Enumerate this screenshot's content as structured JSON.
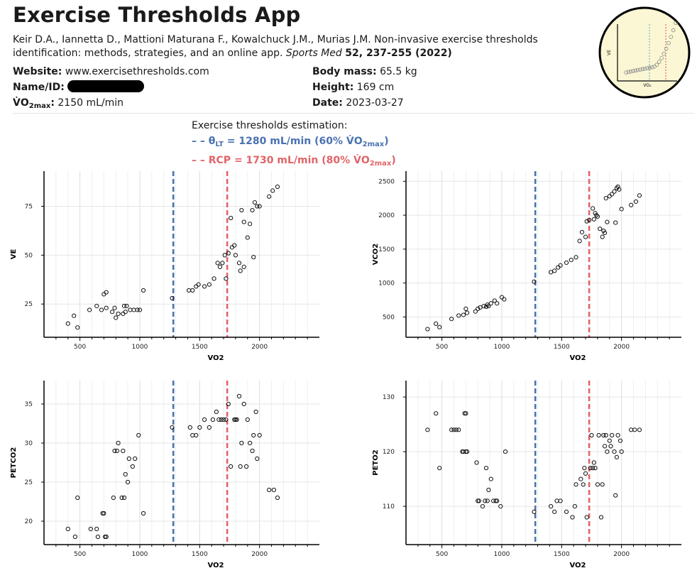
{
  "header": {
    "title": "Exercise Thresholds App",
    "citation_authors": "Keir D.A., Iannetta D., Mattioni Maturana F., Kowalchuck J.M., Murias J.M. Non-invasive exercise thresholds identification: methods, strategies, and an online app.",
    "citation_journal": "Sports Med",
    "citation_volume": "52, 237-255 (2022)"
  },
  "info": {
    "website_label": "Website:",
    "website_value": "www.exercisethresholds.com",
    "name_label": "Name/ID:",
    "vo2max_label_main": "V̇O",
    "vo2max_label_sub": "2max",
    "vo2max_label_colon": ":",
    "vo2max_value": "2150 mL/min",
    "bodymass_label": "Body mass:",
    "bodymass_value": "65.5 kg",
    "height_label": "Height:",
    "height_value": "169 cm",
    "date_label": "Date:",
    "date_value": "2023-03-27"
  },
  "legend": {
    "title": "Exercise thresholds estimation:",
    "lt_prefix": "– – θ",
    "lt_sub": "LT",
    "lt_text": " = 1280 mL/min (60% V̇O",
    "lt_sub2": "2max",
    "lt_close": ")",
    "rcp_text": "– – RCP = 1730 mL/min (80% V̇O",
    "rcp_sub": "2max",
    "rcp_close": ")"
  },
  "colors": {
    "lt": "#4a72b0",
    "rcp": "#e06468",
    "grid": "#e6e6e6",
    "axis": "#000000",
    "logo_bg": "#fbf7d4"
  },
  "logo": {
    "xlabel": "VO₂",
    "ylabel": "VE"
  },
  "chart_data": [
    {
      "type": "scatter",
      "id": "ve",
      "xlabel": "VO2",
      "ylabel": "VE",
      "xlim": [
        200,
        2500
      ],
      "ylim": [
        8,
        93
      ],
      "xticks": [
        500,
        1000,
        1500,
        2000
      ],
      "yticks": [
        25,
        50,
        75
      ],
      "thresholds": [
        1280,
        1730
      ],
      "x": [
        400,
        450,
        480,
        580,
        640,
        680,
        700,
        720,
        720,
        770,
        790,
        800,
        820,
        860,
        870,
        880,
        890,
        920,
        950,
        980,
        1000,
        1030,
        1270,
        1410,
        1440,
        1470,
        1490,
        1540,
        1580,
        1620,
        1650,
        1670,
        1690,
        1710,
        1720,
        1740,
        1760,
        1770,
        1790,
        1800,
        1830,
        1840,
        1850,
        1870,
        1870,
        1900,
        1920,
        1940,
        1950,
        1960,
        1980,
        2000,
        2080,
        2110,
        2150
      ],
      "y": [
        15,
        19,
        13,
        22,
        24,
        22,
        30,
        31,
        23,
        21,
        23,
        18,
        20,
        20,
        24,
        21,
        24,
        22,
        22,
        22,
        22,
        32,
        28,
        32,
        32,
        34,
        35,
        34,
        35,
        38,
        46,
        44,
        46,
        50,
        38,
        51,
        69,
        54,
        55,
        50,
        46,
        42,
        73,
        44,
        67,
        59,
        66,
        73,
        49,
        77,
        75,
        75,
        80,
        83,
        85
      ]
    },
    {
      "type": "scatter",
      "id": "vco2",
      "xlabel": "VO2",
      "ylabel": "VCO2",
      "xlim": [
        200,
        2500
      ],
      "ylim": [
        200,
        2650
      ],
      "xticks": [
        500,
        1000,
        1500,
        2000
      ],
      "yticks": [
        500,
        1000,
        1500,
        2000,
        2500
      ],
      "thresholds": [
        1280,
        1730
      ],
      "x": [
        380,
        450,
        480,
        580,
        640,
        680,
        700,
        710,
        780,
        800,
        820,
        850,
        870,
        880,
        890,
        910,
        940,
        960,
        1000,
        1020,
        1270,
        1410,
        1440,
        1470,
        1490,
        1540,
        1580,
        1620,
        1650,
        1670,
        1700,
        1710,
        1730,
        1760,
        1770,
        1780,
        1790,
        1800,
        1820,
        1840,
        1850,
        1860,
        1870,
        1880,
        1900,
        1920,
        1940,
        1950,
        1960,
        1970,
        1980,
        2000,
        2080,
        2120,
        2150
      ],
      "y": [
        320,
        400,
        350,
        470,
        520,
        530,
        620,
        560,
        580,
        620,
        640,
        660,
        650,
        680,
        660,
        700,
        740,
        700,
        790,
        760,
        1020,
        1160,
        1180,
        1230,
        1260,
        1300,
        1340,
        1380,
        1620,
        1750,
        1680,
        1910,
        1930,
        2100,
        1940,
        2030,
        2000,
        1980,
        1800,
        1680,
        1770,
        1740,
        2250,
        1900,
        2280,
        2310,
        2350,
        1890,
        2400,
        2420,
        2380,
        2090,
        2150,
        2200,
        2290
      ]
    },
    {
      "type": "scatter",
      "id": "petco2",
      "xlabel": "VO2",
      "ylabel": "PETCO2",
      "xlim": [
        200,
        2500
      ],
      "ylim": [
        17,
        38
      ],
      "xticks": [
        500,
        1000,
        1500,
        2000
      ],
      "yticks": [
        20,
        25,
        30,
        35
      ],
      "thresholds": [
        1280,
        1730
      ],
      "x": [
        400,
        460,
        480,
        590,
        640,
        650,
        690,
        700,
        710,
        720,
        780,
        790,
        810,
        820,
        850,
        860,
        870,
        880,
        900,
        910,
        940,
        960,
        990,
        1030,
        1270,
        1420,
        1440,
        1470,
        1500,
        1540,
        1580,
        1610,
        1640,
        1660,
        1680,
        1700,
        1720,
        1740,
        1760,
        1790,
        1800,
        1810,
        1830,
        1840,
        1850,
        1870,
        1890,
        1900,
        1920,
        1940,
        1950,
        1970,
        1980,
        2000,
        2080,
        2120,
        2150
      ],
      "y": [
        19,
        18,
        23,
        19,
        19,
        18,
        21,
        21,
        18,
        18,
        23,
        29,
        29,
        30,
        23,
        29,
        23,
        26,
        25,
        28,
        27,
        28,
        31,
        21,
        32,
        32,
        31,
        31,
        32,
        33,
        32,
        33,
        34,
        33,
        33,
        33,
        33,
        35,
        27,
        33,
        33,
        33,
        36,
        27,
        30,
        35,
        27,
        33,
        30,
        29,
        31,
        34,
        28,
        31,
        24,
        24,
        23
      ]
    },
    {
      "type": "scatter",
      "id": "peto2",
      "xlabel": "VO2",
      "ylabel": "PETO2",
      "xlim": [
        200,
        2500
      ],
      "ylim": [
        103,
        133
      ],
      "xticks": [
        500,
        1000,
        1500,
        2000
      ],
      "yticks": [
        110,
        120,
        130
      ],
      "thresholds": [
        1280,
        1730
      ],
      "x": [
        380,
        450,
        480,
        580,
        600,
        620,
        640,
        670,
        680,
        690,
        700,
        700,
        710,
        790,
        800,
        810,
        840,
        860,
        870,
        880,
        890,
        910,
        930,
        950,
        960,
        990,
        1030,
        1270,
        1410,
        1440,
        1460,
        1490,
        1540,
        1590,
        1610,
        1620,
        1660,
        1680,
        1690,
        1700,
        1710,
        1740,
        1750,
        1760,
        1770,
        1780,
        1800,
        1810,
        1830,
        1840,
        1850,
        1860,
        1870,
        1880,
        1900,
        1910,
        1920,
        1940,
        1950,
        1960,
        1970,
        1990,
        2000,
        2080,
        2110,
        2150
      ],
      "y": [
        124,
        127,
        117,
        124,
        124,
        124,
        124,
        120,
        120,
        127,
        120,
        127,
        120,
        118,
        111,
        111,
        110,
        111,
        117,
        111,
        113,
        115,
        111,
        111,
        111,
        110,
        120,
        109,
        110,
        109,
        111,
        111,
        109,
        108,
        110,
        114,
        115,
        114,
        117,
        116,
        108,
        117,
        123,
        117,
        118,
        117,
        114,
        123,
        108,
        114,
        123,
        121,
        123,
        120,
        122,
        121,
        123,
        120,
        112,
        119,
        123,
        122,
        120,
        124,
        124,
        124
      ]
    }
  ]
}
